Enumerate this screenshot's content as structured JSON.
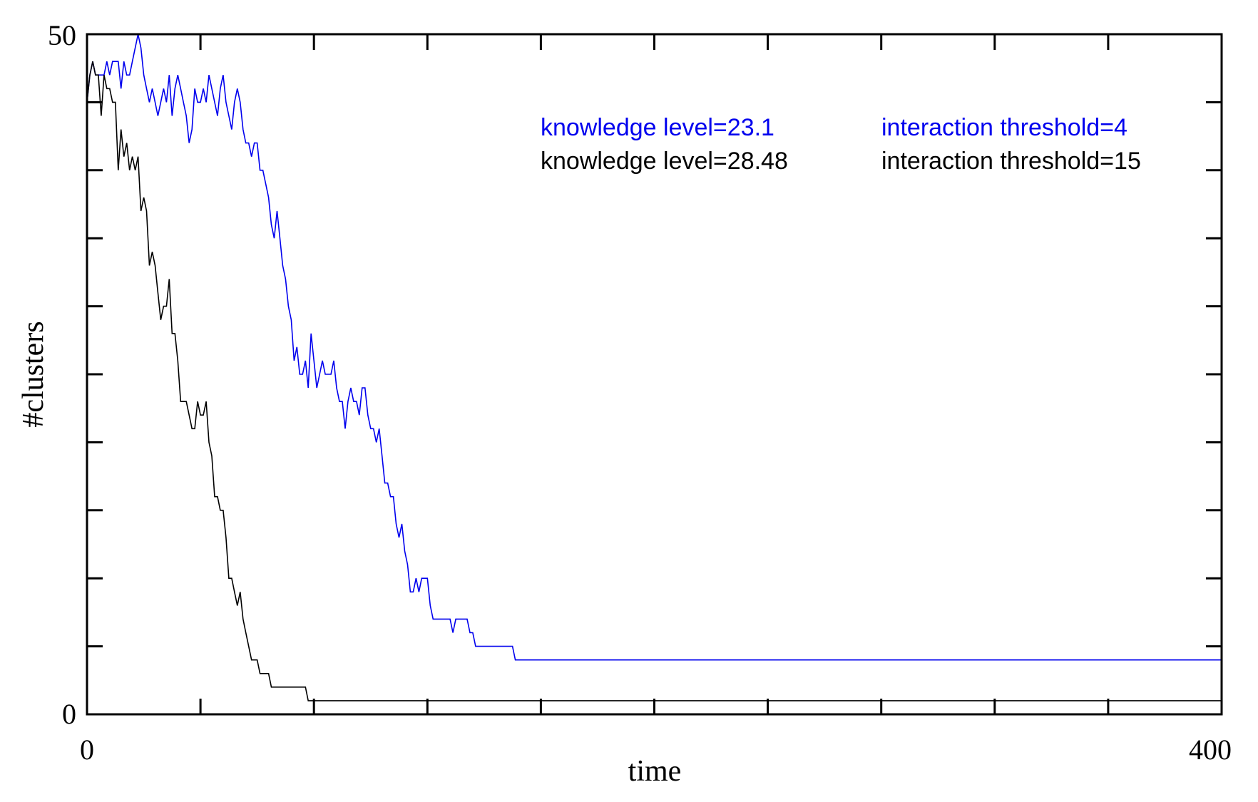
{
  "chart_data": {
    "type": "line",
    "xlabel": "time",
    "ylabel": "#clusters",
    "xlim": [
      0,
      400
    ],
    "ylim": [
      0,
      50
    ],
    "x_tick_labels": [
      "0",
      "400"
    ],
    "y_tick_labels": [
      "0",
      "50"
    ],
    "grid": false,
    "legend_placement": "top-right",
    "series": [
      {
        "color": "#0000ee",
        "legend": [
          "knowledge level=23.1",
          "interaction threshold=4"
        ],
        "points": [
          [
            0,
            45
          ],
          [
            1,
            47
          ],
          [
            2,
            48
          ],
          [
            3,
            47
          ],
          [
            4,
            47
          ],
          [
            5,
            47
          ],
          [
            6,
            47
          ],
          [
            7,
            48
          ],
          [
            8,
            47
          ],
          [
            9,
            48
          ],
          [
            10,
            48
          ],
          [
            11,
            48
          ],
          [
            12,
            46
          ],
          [
            13,
            48
          ],
          [
            14,
            47
          ],
          [
            15,
            47
          ],
          [
            16,
            48
          ],
          [
            17,
            49
          ],
          [
            18,
            50
          ],
          [
            19,
            49
          ],
          [
            20,
            47
          ],
          [
            21,
            46
          ],
          [
            22,
            45
          ],
          [
            23,
            46
          ],
          [
            24,
            45
          ],
          [
            25,
            44
          ],
          [
            26,
            45
          ],
          [
            27,
            46
          ],
          [
            28,
            45
          ],
          [
            29,
            47
          ],
          [
            30,
            44
          ],
          [
            31,
            46
          ],
          [
            32,
            47
          ],
          [
            33,
            46
          ],
          [
            34,
            45
          ],
          [
            35,
            44
          ],
          [
            36,
            42
          ],
          [
            37,
            43
          ],
          [
            38,
            46
          ],
          [
            39,
            45
          ],
          [
            40,
            45
          ],
          [
            41,
            46
          ],
          [
            42,
            45
          ],
          [
            43,
            47
          ],
          [
            44,
            46
          ],
          [
            45,
            45
          ],
          [
            46,
            44
          ],
          [
            47,
            46
          ],
          [
            48,
            47
          ],
          [
            49,
            45
          ],
          [
            50,
            44
          ],
          [
            51,
            43
          ],
          [
            52,
            45
          ],
          [
            53,
            46
          ],
          [
            54,
            45
          ],
          [
            55,
            43
          ],
          [
            56,
            42
          ],
          [
            57,
            42
          ],
          [
            58,
            41
          ],
          [
            59,
            42
          ],
          [
            60,
            42
          ],
          [
            61,
            40
          ],
          [
            62,
            40
          ],
          [
            63,
            39
          ],
          [
            64,
            38
          ],
          [
            65,
            36
          ],
          [
            66,
            35
          ],
          [
            67,
            37
          ],
          [
            68,
            35
          ],
          [
            69,
            33
          ],
          [
            70,
            32
          ],
          [
            71,
            30
          ],
          [
            72,
            29
          ],
          [
            73,
            26
          ],
          [
            74,
            27
          ],
          [
            75,
            25
          ],
          [
            76,
            25
          ],
          [
            77,
            26
          ],
          [
            78,
            24
          ],
          [
            79,
            28
          ],
          [
            80,
            26
          ],
          [
            81,
            24
          ],
          [
            82,
            25
          ],
          [
            83,
            26
          ],
          [
            84,
            25
          ],
          [
            85,
            25
          ],
          [
            86,
            25
          ],
          [
            87,
            26
          ],
          [
            88,
            24
          ],
          [
            89,
            23
          ],
          [
            90,
            23
          ],
          [
            91,
            21
          ],
          [
            92,
            23
          ],
          [
            93,
            24
          ],
          [
            94,
            23
          ],
          [
            95,
            23
          ],
          [
            96,
            22
          ],
          [
            97,
            24
          ],
          [
            98,
            24
          ],
          [
            99,
            22
          ],
          [
            100,
            21
          ],
          [
            101,
            21
          ],
          [
            102,
            20
          ],
          [
            103,
            21
          ],
          [
            104,
            19
          ],
          [
            105,
            17
          ],
          [
            106,
            17
          ],
          [
            107,
            16
          ],
          [
            108,
            16
          ],
          [
            109,
            14
          ],
          [
            110,
            13
          ],
          [
            111,
            14
          ],
          [
            112,
            12
          ],
          [
            113,
            11
          ],
          [
            114,
            9
          ],
          [
            115,
            9
          ],
          [
            116,
            10
          ],
          [
            117,
            9
          ],
          [
            118,
            10
          ],
          [
            119,
            10
          ],
          [
            120,
            10
          ],
          [
            121,
            8
          ],
          [
            122,
            7
          ],
          [
            123,
            7
          ],
          [
            124,
            7
          ],
          [
            125,
            7
          ],
          [
            126,
            7
          ],
          [
            127,
            7
          ],
          [
            128,
            7
          ],
          [
            129,
            6
          ],
          [
            130,
            7
          ],
          [
            131,
            7
          ],
          [
            132,
            7
          ],
          [
            133,
            7
          ],
          [
            134,
            7
          ],
          [
            135,
            6
          ],
          [
            136,
            6
          ],
          [
            137,
            5
          ],
          [
            138,
            5
          ],
          [
            139,
            5
          ],
          [
            140,
            5
          ],
          [
            141,
            5
          ],
          [
            142,
            5
          ],
          [
            143,
            5
          ],
          [
            144,
            5
          ],
          [
            145,
            5
          ],
          [
            146,
            5
          ],
          [
            147,
            5
          ],
          [
            148,
            5
          ],
          [
            149,
            5
          ],
          [
            150,
            5
          ],
          [
            151,
            4
          ],
          [
            152,
            4
          ],
          [
            153,
            4
          ],
          [
            154,
            4
          ],
          [
            155,
            4
          ],
          [
            156,
            4
          ],
          [
            157,
            4
          ],
          [
            158,
            4
          ],
          [
            159,
            4
          ],
          [
            160,
            4
          ],
          [
            400,
            4
          ]
        ]
      },
      {
        "color": "#000000",
        "legend": [
          "knowledge level=28.48",
          "interaction threshold=15"
        ],
        "points": [
          [
            0,
            45
          ],
          [
            1,
            47
          ],
          [
            2,
            48
          ],
          [
            3,
            47
          ],
          [
            4,
            47
          ],
          [
            5,
            44
          ],
          [
            6,
            47
          ],
          [
            7,
            46
          ],
          [
            8,
            46
          ],
          [
            9,
            45
          ],
          [
            10,
            45
          ],
          [
            11,
            40
          ],
          [
            12,
            43
          ],
          [
            13,
            41
          ],
          [
            14,
            42
          ],
          [
            15,
            40
          ],
          [
            16,
            41
          ],
          [
            17,
            40
          ],
          [
            18,
            41
          ],
          [
            19,
            37
          ],
          [
            20,
            38
          ],
          [
            21,
            37
          ],
          [
            22,
            33
          ],
          [
            23,
            34
          ],
          [
            24,
            33
          ],
          [
            25,
            31
          ],
          [
            26,
            29
          ],
          [
            27,
            30
          ],
          [
            28,
            30
          ],
          [
            29,
            32
          ],
          [
            30,
            28
          ],
          [
            31,
            28
          ],
          [
            32,
            26
          ],
          [
            33,
            23
          ],
          [
            34,
            23
          ],
          [
            35,
            23
          ],
          [
            36,
            22
          ],
          [
            37,
            21
          ],
          [
            38,
            21
          ],
          [
            39,
            23
          ],
          [
            40,
            22
          ],
          [
            41,
            22
          ],
          [
            42,
            23
          ],
          [
            43,
            20
          ],
          [
            44,
            19
          ],
          [
            45,
            16
          ],
          [
            46,
            16
          ],
          [
            47,
            15
          ],
          [
            48,
            15
          ],
          [
            49,
            13
          ],
          [
            50,
            10
          ],
          [
            51,
            10
          ],
          [
            52,
            9
          ],
          [
            53,
            8
          ],
          [
            54,
            9
          ],
          [
            55,
            7
          ],
          [
            56,
            6
          ],
          [
            57,
            5
          ],
          [
            58,
            4
          ],
          [
            59,
            4
          ],
          [
            60,
            4
          ],
          [
            61,
            3
          ],
          [
            62,
            3
          ],
          [
            63,
            3
          ],
          [
            64,
            3
          ],
          [
            65,
            2
          ],
          [
            66,
            2
          ],
          [
            67,
            2
          ],
          [
            68,
            2
          ],
          [
            69,
            2
          ],
          [
            70,
            2
          ],
          [
            71,
            2
          ],
          [
            72,
            2
          ],
          [
            73,
            2
          ],
          [
            74,
            2
          ],
          [
            75,
            2
          ],
          [
            76,
            2
          ],
          [
            77,
            2
          ],
          [
            78,
            1
          ],
          [
            79,
            1
          ],
          [
            80,
            1
          ],
          [
            400,
            1
          ]
        ]
      }
    ]
  }
}
